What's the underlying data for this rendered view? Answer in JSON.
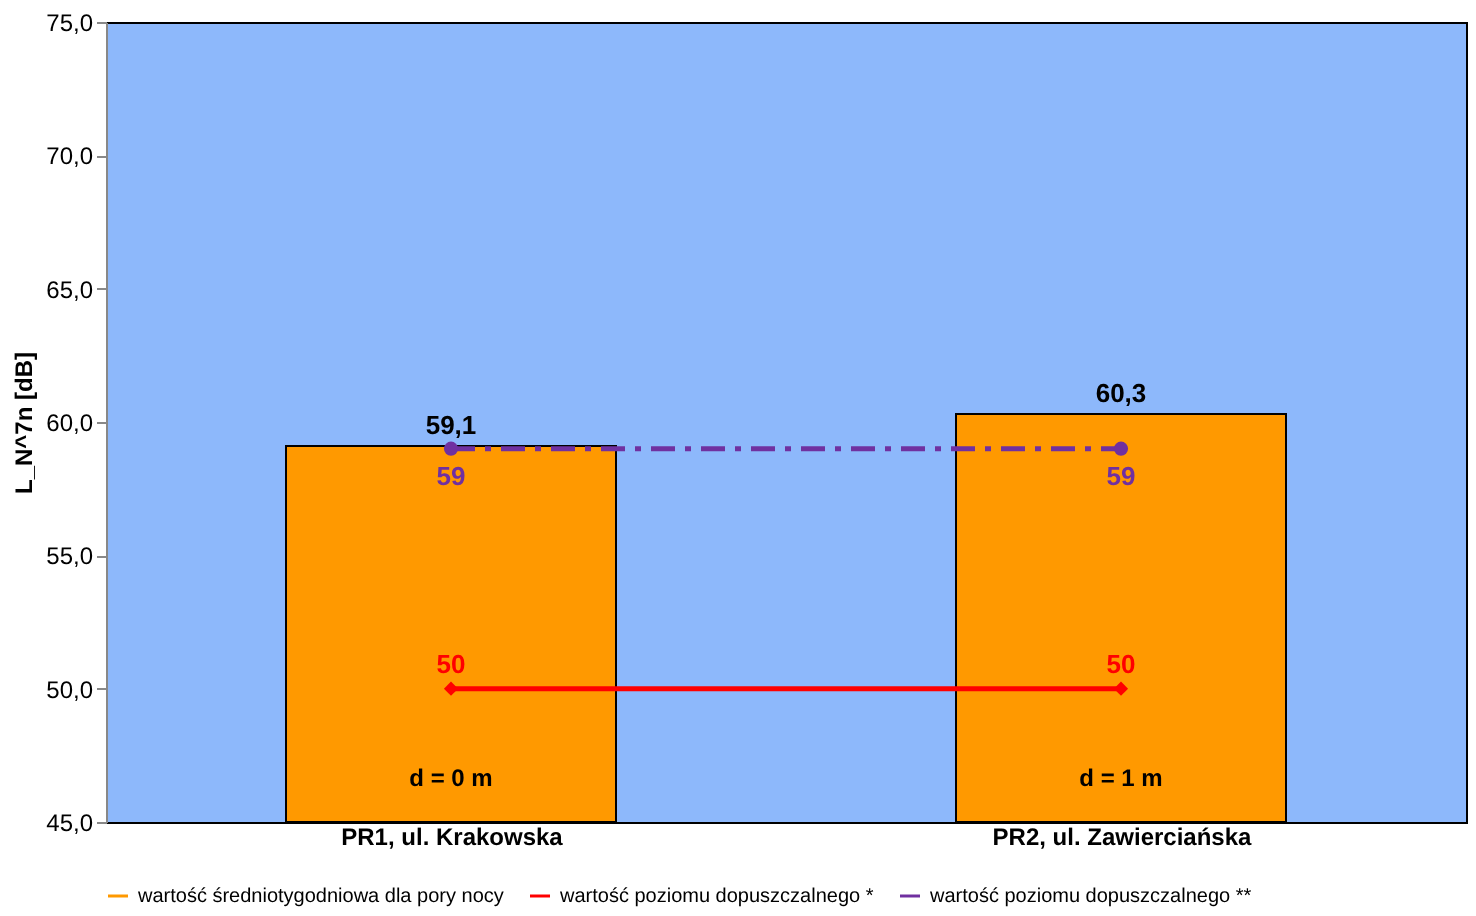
{
  "chart_data": {
    "type": "bar",
    "ylabel": "L_N^7n [dB]",
    "categories": [
      "PR1, ul. Krakowska",
      "PR2, ul. Zawierciańska"
    ],
    "series": [
      {
        "name": "wartość średniotygodniowa dla pory nocy",
        "color": "#ff9900",
        "values": [
          59.1,
          60.3
        ],
        "value_labels": [
          "59,1",
          "60,3"
        ]
      },
      {
        "name": "wartość poziomu dopuszczalnego *",
        "type": "line",
        "color": "#ff0000",
        "values": [
          50,
          50
        ],
        "value_labels": [
          "50",
          "50"
        ],
        "marker": "diamond",
        "line_style": "solid"
      },
      {
        "name": "wartość poziomu dopuszczalnego **",
        "type": "line",
        "color": "#7030a0",
        "values": [
          59,
          59
        ],
        "value_labels": [
          "59",
          "59"
        ],
        "marker": "circle",
        "line_style": "dashed"
      }
    ],
    "annotations": [
      "d = 0 m",
      "d = 1 m"
    ],
    "ylim": [
      45,
      75
    ],
    "yticks": [
      {
        "value": 45,
        "label": "45,0"
      },
      {
        "value": 50,
        "label": "50,0"
      },
      {
        "value": 55,
        "label": "55,0"
      },
      {
        "value": 60,
        "label": "60,0"
      },
      {
        "value": 65,
        "label": "65,0"
      },
      {
        "value": 70,
        "label": "70,0"
      },
      {
        "value": 75,
        "label": "75,0"
      }
    ],
    "grid": false,
    "legend": "bottom"
  }
}
